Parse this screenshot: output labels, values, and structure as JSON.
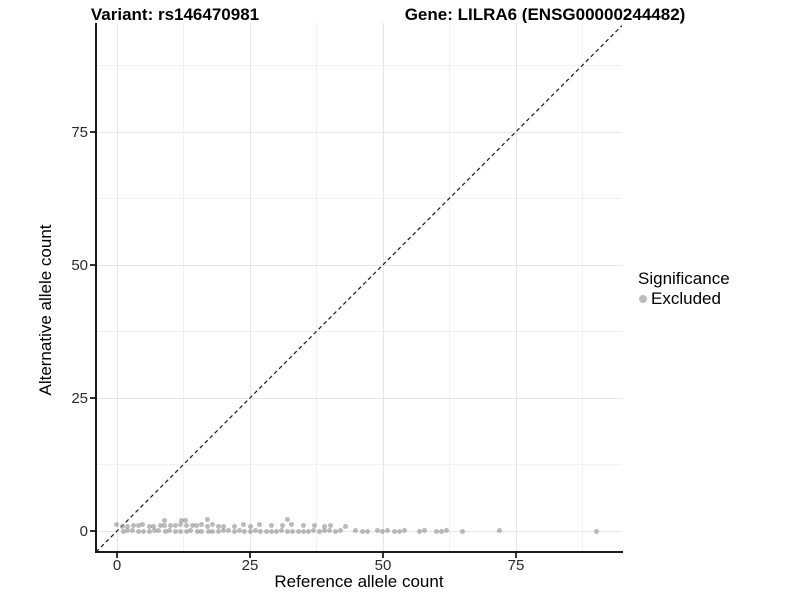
{
  "colors": {
    "point": "#8f8f8f",
    "legend_key": "#bcbcbc",
    "grid_major": "#e6e6e6",
    "grid_minor": "#f1f1f1",
    "axis_line": "#1a1a1a",
    "identity_line": "#1a1a1a",
    "background": "#ffffff"
  },
  "legend": {
    "title": "Significance",
    "items": [
      {
        "label": "Excluded",
        "color": "#bcbcbc"
      }
    ]
  },
  "chart_data": {
    "type": "scatter",
    "title_left": "Variant: rs146470981",
    "title_right": "Gene: LILRA6 (ENSG00000244482)",
    "xlabel": "Reference allele count",
    "ylabel": "Alternative allele count",
    "xlim": [
      -4,
      95
    ],
    "ylim": [
      -4,
      95.5
    ],
    "x_ticks": [
      0,
      25,
      50,
      75
    ],
    "y_ticks": [
      0,
      25,
      50,
      75
    ],
    "x_minor_ticks": [
      12.5,
      37.5,
      62.5,
      87.5
    ],
    "y_minor_ticks": [
      12.5,
      37.5,
      62.5,
      87.5
    ],
    "grid": true,
    "legend_position": "right",
    "identity_line": {
      "style": "dashed",
      "from": [
        -4,
        -4
      ],
      "to": [
        95.5,
        95.5
      ]
    },
    "series": [
      {
        "name": "Excluded",
        "color": "#8f8f8f",
        "points": [
          [
            0,
            1
          ],
          [
            1,
            0
          ],
          [
            1,
            1
          ],
          [
            2,
            0
          ],
          [
            2,
            1
          ],
          [
            3,
            0
          ],
          [
            3,
            1
          ],
          [
            4,
            0
          ],
          [
            4,
            1
          ],
          [
            5,
            0
          ],
          [
            5,
            1
          ],
          [
            6,
            0
          ],
          [
            6,
            1
          ],
          [
            7,
            0
          ],
          [
            7,
            1
          ],
          [
            8,
            0
          ],
          [
            8,
            1
          ],
          [
            9,
            0
          ],
          [
            9,
            1
          ],
          [
            9,
            2
          ],
          [
            10,
            0
          ],
          [
            10,
            1
          ],
          [
            11,
            0
          ],
          [
            11,
            1
          ],
          [
            12,
            0
          ],
          [
            12,
            1
          ],
          [
            12,
            2
          ],
          [
            13,
            0
          ],
          [
            13,
            1
          ],
          [
            13,
            2
          ],
          [
            14,
            0
          ],
          [
            14,
            1
          ],
          [
            15,
            0
          ],
          [
            15,
            1
          ],
          [
            16,
            0
          ],
          [
            16,
            1
          ],
          [
            17,
            0
          ],
          [
            17,
            1
          ],
          [
            17,
            2
          ],
          [
            18,
            0
          ],
          [
            18,
            1
          ],
          [
            19,
            0
          ],
          [
            19,
            1
          ],
          [
            20,
            0
          ],
          [
            20,
            1
          ],
          [
            21,
            0
          ],
          [
            22,
            0
          ],
          [
            22,
            1
          ],
          [
            23,
            0
          ],
          [
            24,
            0
          ],
          [
            24,
            1
          ],
          [
            25,
            0
          ],
          [
            25,
            1
          ],
          [
            26,
            0
          ],
          [
            27,
            0
          ],
          [
            27,
            1
          ],
          [
            28,
            0
          ],
          [
            29,
            0
          ],
          [
            29,
            1
          ],
          [
            30,
            0
          ],
          [
            31,
            0
          ],
          [
            31,
            1
          ],
          [
            32,
            0
          ],
          [
            32,
            2
          ],
          [
            33,
            0
          ],
          [
            33,
            1
          ],
          [
            34,
            0
          ],
          [
            35,
            0
          ],
          [
            35,
            1
          ],
          [
            36,
            0
          ],
          [
            37,
            0
          ],
          [
            37,
            1
          ],
          [
            38,
            0
          ],
          [
            39,
            0
          ],
          [
            39,
            1
          ],
          [
            40,
            0
          ],
          [
            40,
            1
          ],
          [
            41,
            0
          ],
          [
            42,
            0
          ],
          [
            43,
            1
          ],
          [
            45,
            0
          ],
          [
            46,
            0
          ],
          [
            47,
            0
          ],
          [
            49,
            0
          ],
          [
            50,
            0
          ],
          [
            51,
            0
          ],
          [
            52,
            0
          ],
          [
            53,
            0
          ],
          [
            54,
            0
          ],
          [
            57,
            0
          ],
          [
            58,
            0
          ],
          [
            60,
            0
          ],
          [
            61,
            0
          ],
          [
            62,
            0
          ],
          [
            65,
            0
          ],
          [
            72,
            0
          ],
          [
            90,
            0
          ]
        ]
      }
    ]
  }
}
